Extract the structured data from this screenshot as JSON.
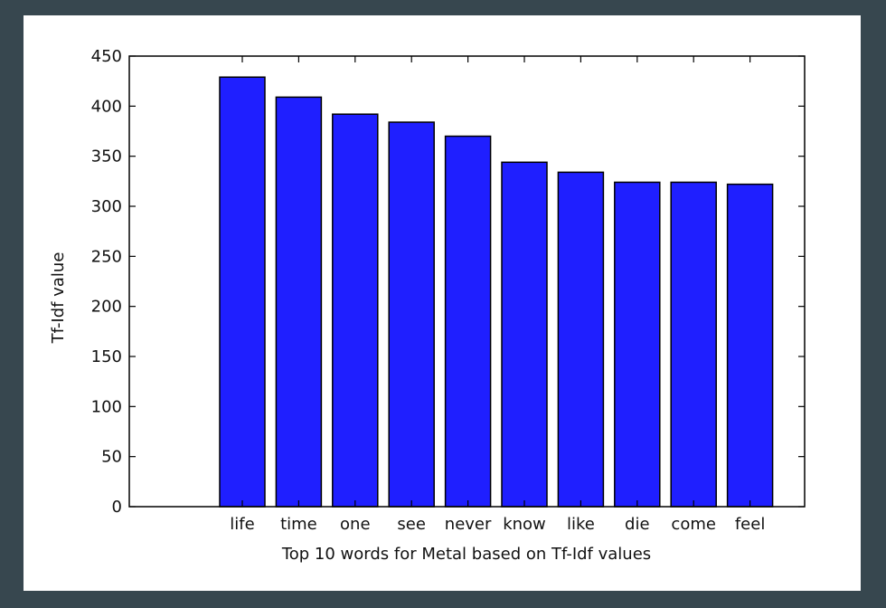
{
  "colors": {
    "background": "#37474f",
    "canvas": "#ffffff",
    "bar_fill": "#1f1fff",
    "axis": "#000000"
  },
  "chart_data": {
    "type": "bar",
    "categories": [
      "life",
      "time",
      "one",
      "see",
      "never",
      "know",
      "like",
      "die",
      "come",
      "feel"
    ],
    "values": [
      429,
      409,
      392,
      384,
      370,
      344,
      334,
      324,
      324,
      322
    ],
    "title": "",
    "xlabel": "Top 10 words for Metal based on Tf-Idf values",
    "ylabel": "Tf-Idf value",
    "ylim": [
      0,
      450
    ],
    "yticks": [
      0,
      50,
      100,
      150,
      200,
      250,
      300,
      350,
      400,
      450
    ],
    "grid": false,
    "legend": "none"
  }
}
